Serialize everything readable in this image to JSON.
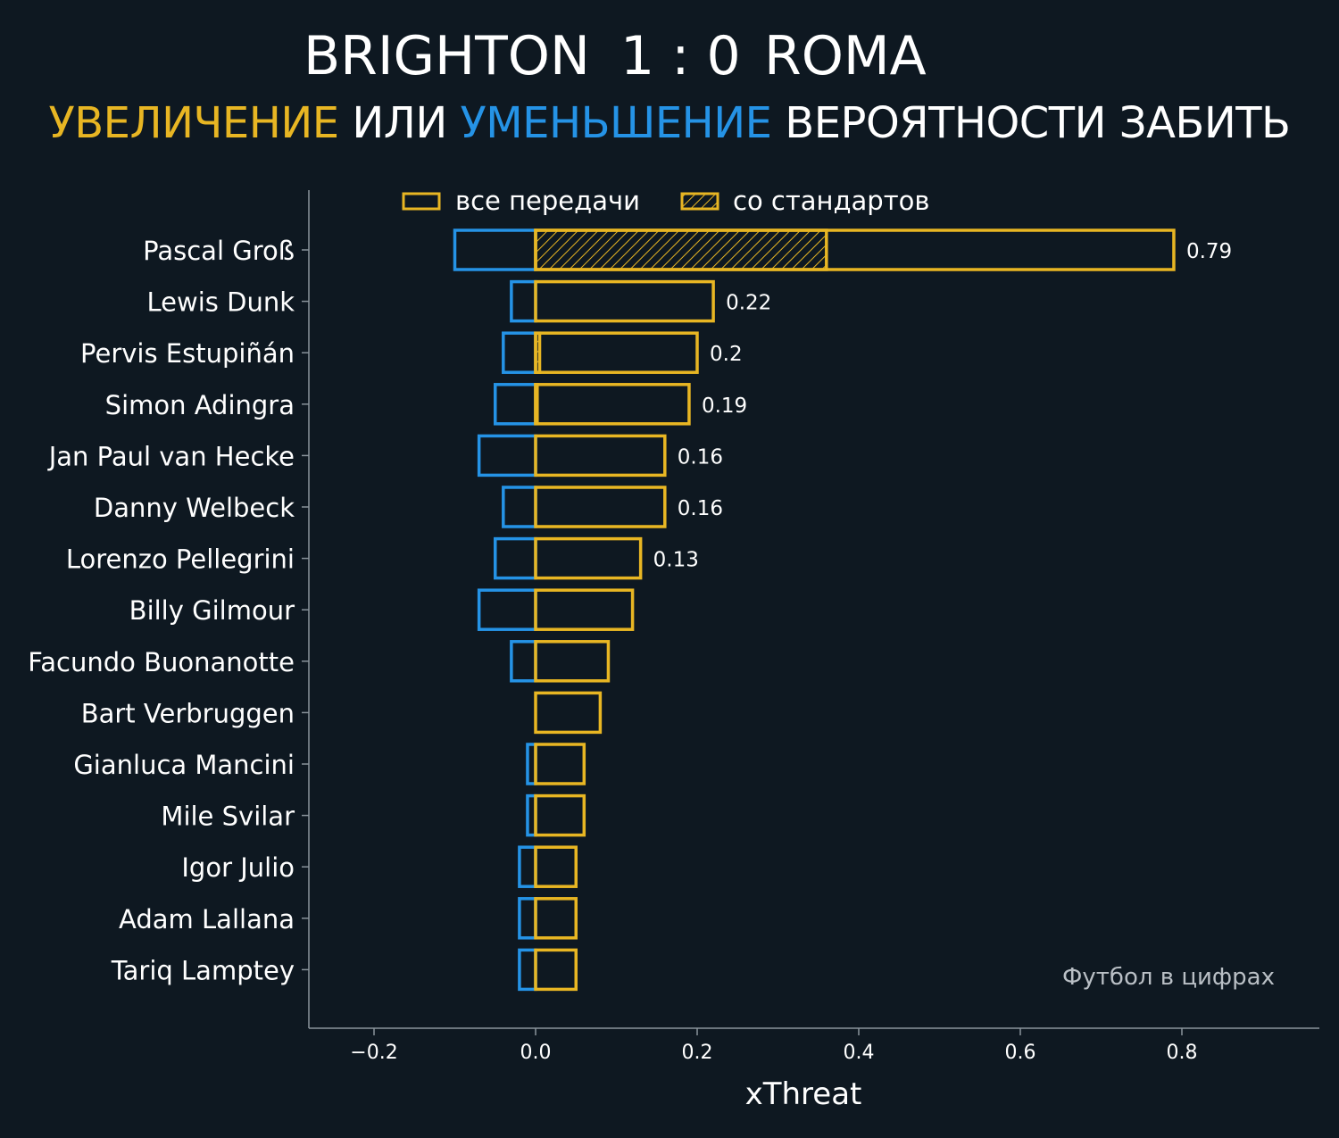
{
  "header": {
    "home": "BRIGHTON",
    "score": "1 : 0",
    "away": "ROMA",
    "subtitle_increase": "УВЕЛИЧЕНИЕ",
    "subtitle_or": " ИЛИ ",
    "subtitle_decrease": "УМЕНЬШЕНИЕ",
    "subtitle_rest": " ВЕРОЯТНОСТИ ЗАБИТЬ"
  },
  "watermark": "Футбол в цифрах",
  "colors": {
    "background": "#0e1821",
    "increase": "#e8b623",
    "decrease": "#2593e6",
    "axis": "#8a949c"
  },
  "chart_data": {
    "type": "bar",
    "orientation": "horizontal",
    "title": "",
    "xlabel": "xThreat",
    "ylabel": "",
    "xlim": [
      -0.28,
      0.97
    ],
    "xticks": [
      -0.2,
      0.0,
      0.2,
      0.4,
      0.6,
      0.8
    ],
    "xtick_labels": [
      "−0.2",
      "0.0",
      "0.2",
      "0.4",
      "0.6",
      "0.8"
    ],
    "legend": {
      "placement": "top-center",
      "entries": [
        "все передачи",
        "со стандартов"
      ]
    },
    "categories": [
      "Pascal Groß",
      "Lewis Dunk",
      "Pervis Estupiñán",
      "Simon Adingra",
      "Jan Paul van Hecke",
      "Danny Welbeck",
      "Lorenzo Pellegrini",
      "Billy Gilmour",
      "Facundo Buonanotte",
      "Bart Verbruggen",
      "Gianluca Mancini",
      "Mile Svilar",
      "Igor Julio",
      "Adam Lallana",
      "Tariq Lamptey"
    ],
    "series": [
      {
        "name": "все передачи",
        "positive": [
          0.79,
          0.22,
          0.2,
          0.19,
          0.16,
          0.16,
          0.13,
          0.12,
          0.09,
          0.08,
          0.06,
          0.06,
          0.05,
          0.05,
          0.05
        ],
        "negative": [
          -0.1,
          -0.03,
          -0.04,
          -0.05,
          -0.07,
          -0.04,
          -0.05,
          -0.07,
          -0.03,
          0.0,
          -0.01,
          -0.01,
          -0.02,
          -0.02,
          -0.02
        ]
      },
      {
        "name": "со стандартов",
        "positive": [
          0.36,
          0,
          0.005,
          0.002,
          0,
          0,
          0,
          0,
          0,
          0,
          0,
          0,
          0,
          0,
          0
        ]
      }
    ],
    "data_labels": [
      "0.79",
      "0.22",
      "0.2",
      "0.19",
      "0.16",
      "0.16",
      "0.13",
      "",
      "",
      "",
      "",
      "",
      "",
      "",
      ""
    ]
  }
}
